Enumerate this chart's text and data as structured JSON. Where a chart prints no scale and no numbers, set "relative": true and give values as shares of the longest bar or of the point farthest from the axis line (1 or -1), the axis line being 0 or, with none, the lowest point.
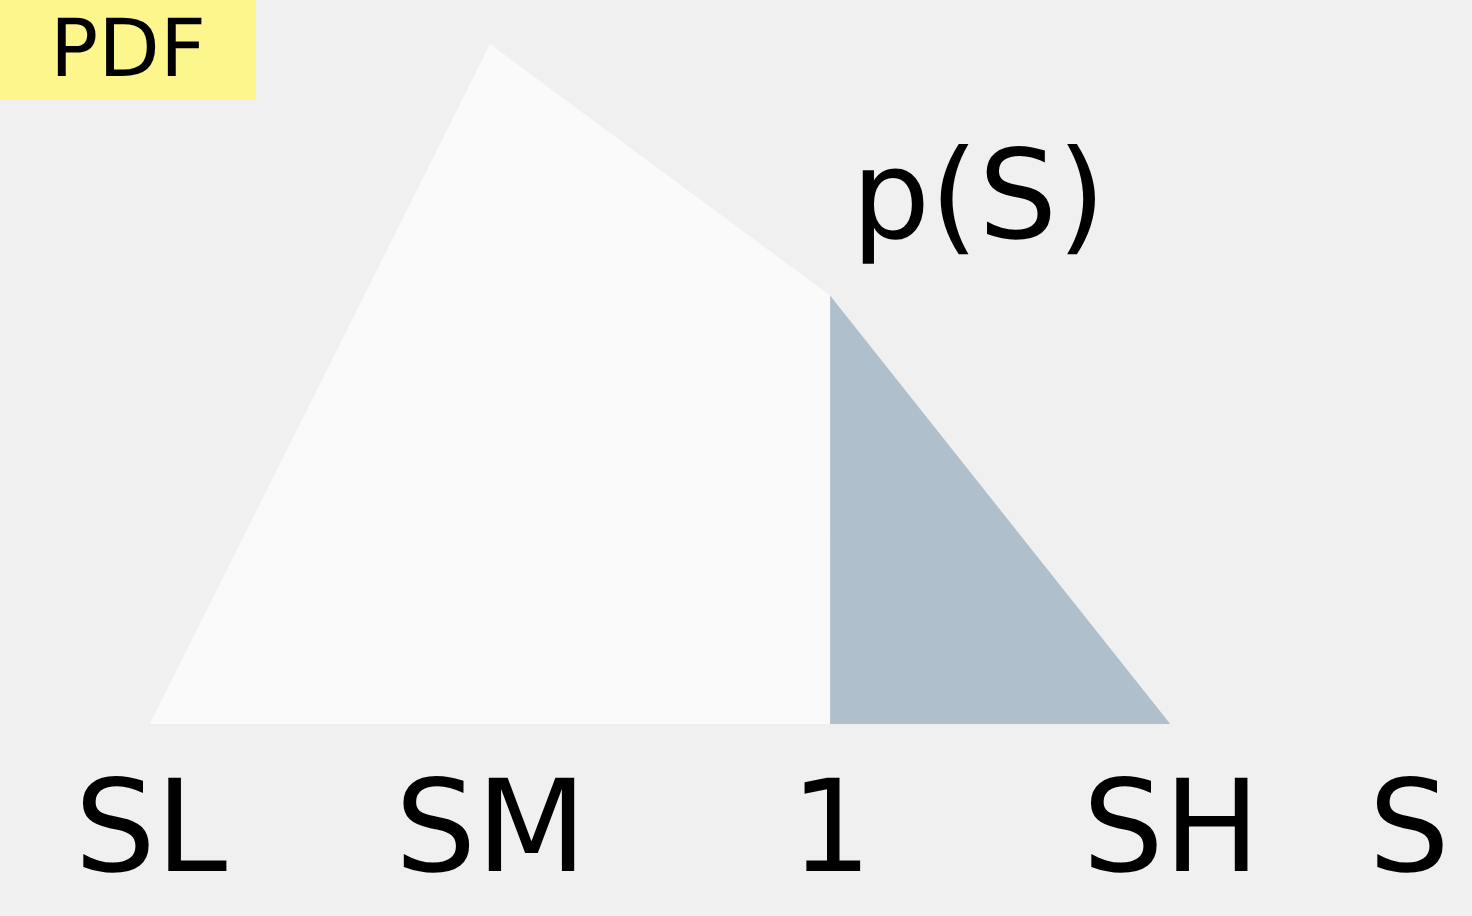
{
  "chart_data": {
    "type": "area",
    "ylabel": "PDF",
    "xlabel": "S",
    "annotations": [
      "p(S)"
    ],
    "categories": [
      "SL",
      "SM",
      "1",
      "SH"
    ],
    "relative": true,
    "series": [
      {
        "color": "#fafafa",
        "values": [
          0,
          1,
          0.63,
          0
        ]
      },
      {
        "color": "#b0bfcc",
        "values": [
          null,
          null,
          0.63,
          0
        ]
      }
    ]
  }
}
